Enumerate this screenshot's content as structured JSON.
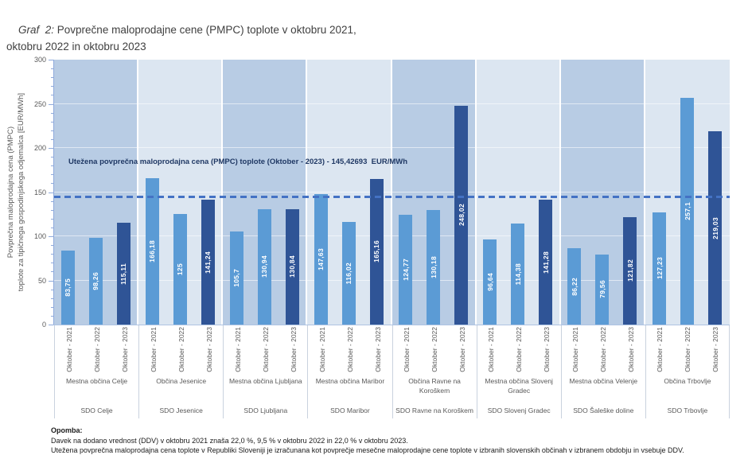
{
  "page": {
    "title_prefix": "Graf  2:",
    "title_rest": " Povprečne maloprodajne cene (PMPC) toplote v oktobru 2021, oktobru 2022 in oktobru 2023"
  },
  "chart_data": {
    "type": "bar",
    "title": "Povprečne maloprodajne cene (PMPC) toplote v oktobru 2021, oktobru 2022 in oktobru 2023",
    "ylabel": [
      "Povprečna maloprodajna cena (PMPC)",
      "toplote za tipičnega gospodinjskega odjemalca  [EUR/MWh]"
    ],
    "ylim": [
      0,
      300
    ],
    "ytick_major": 50,
    "ytick_minor": 10,
    "grid": true,
    "legend_position": "none",
    "series_labels": [
      "Oktober - 2021",
      "Oktober - 2022",
      "Oktober - 2023"
    ],
    "reference_line": {
      "value": 145.42693,
      "label": "Utežena povprečna maloprodajna cena (PMPC) toplote (Oktober - 2023) - 145,42693  EUR/MWh"
    },
    "groups": [
      {
        "municipality": "Mestna občina Celje",
        "sdo": "SDO Celje",
        "values": [
          83.75,
          98.26,
          115.11
        ],
        "value_labels": [
          "83,75",
          "98,26",
          "115,11"
        ]
      },
      {
        "municipality": "Občina Jesenice",
        "sdo": "SDO Jesenice",
        "values": [
          166.18,
          125,
          141.24
        ],
        "value_labels": [
          "166,18",
          "125",
          "141,24"
        ]
      },
      {
        "municipality": "Mestna občina Ljubljana",
        "sdo": "SDO Ljubljana",
        "values": [
          105.7,
          130.94,
          130.84
        ],
        "value_labels": [
          "105,7",
          "130,94",
          "130,84"
        ]
      },
      {
        "municipality": "Mestna občina Maribor",
        "sdo": "SDO Maribor",
        "values": [
          147.63,
          116.02,
          165.16
        ],
        "value_labels": [
          "147,63",
          "116,02",
          "165,16"
        ]
      },
      {
        "municipality": "Občina Ravne na Koroškem",
        "sdo": "SDO Ravne na Koroškem",
        "values": [
          124.77,
          130.18,
          248.02
        ],
        "value_labels": [
          "124,77",
          "130,18",
          "248,02"
        ]
      },
      {
        "municipality": "Mestna občina Slovenj Gradec",
        "sdo": "SDO Slovenj Gradec",
        "values": [
          96.64,
          114.38,
          141.28
        ],
        "value_labels": [
          "96,64",
          "114,38",
          "141,28"
        ]
      },
      {
        "municipality": "Mestna občina Velenje",
        "sdo": "SDO Šaleške doline",
        "values": [
          86.22,
          79.56,
          121.82
        ],
        "value_labels": [
          "86,22",
          "79,56",
          "121,82"
        ]
      },
      {
        "municipality": "Občina Trbovlje",
        "sdo": "SDO Trbovlje",
        "values": [
          127.23,
          257.1,
          219.03
        ],
        "value_labels": [
          "127,23",
          "257,1",
          "219,03"
        ]
      }
    ],
    "colors": {
      "bar_colors": [
        "#5B9BD5",
        "#5B9BD5",
        "#2F5496"
      ],
      "panel_dark": "#B8CCE4",
      "panel_light": "#DCE6F1",
      "reference": "#4472C4",
      "axis": "#8FAADC",
      "text": "#595959"
    }
  },
  "note": {
    "heading": "Opomba:",
    "lines": [
      "Davek na dodano vrednost (DDV) v oktobru 2021 znaša 22,0 %, 9,5 % v oktobru 2022 in 22,0 % v oktobru 2023.",
      "Utežena povprečna maloprodajna cena toplote v Republiki Sloveniji je izračunana kot povprečje mesečne maloprodajne cene toplote v izbranih slovenskih občinah v izbranem obdobju in vsebuje DDV."
    ]
  }
}
